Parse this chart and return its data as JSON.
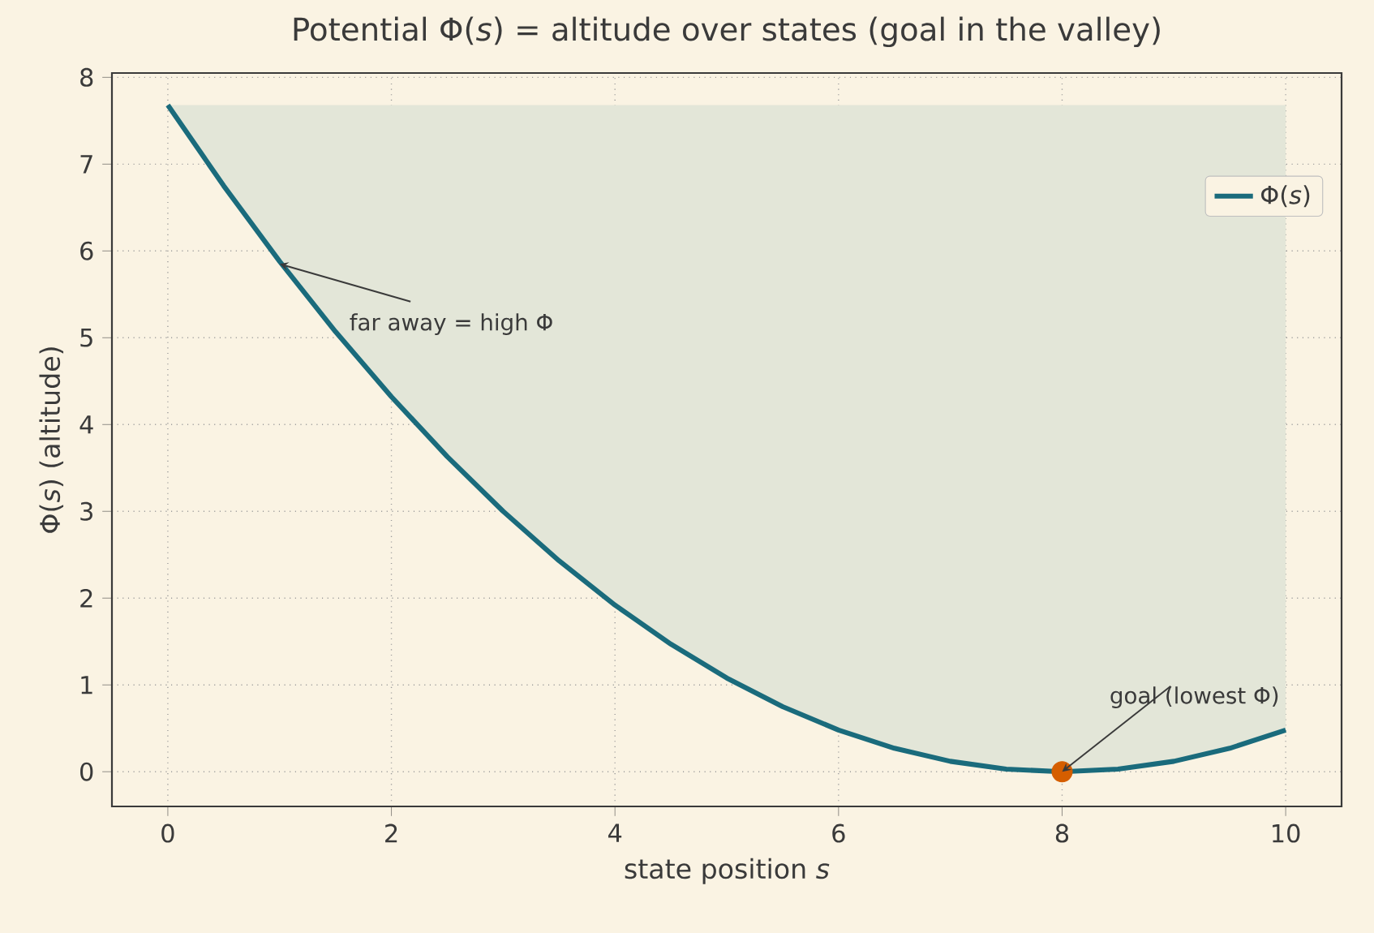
{
  "chart_data": {
    "type": "line",
    "title": "Potential Φ(*s*) = altitude over states (goal in the valley)",
    "xlabel": "state position *s*",
    "ylabel": "Φ(*s*) (altitude)",
    "x": [
      0,
      0.5,
      1,
      1.5,
      2,
      2.5,
      3,
      3.5,
      4,
      4.5,
      5,
      5.5,
      6,
      6.5,
      7,
      7.5,
      8,
      8.5,
      9,
      9.5,
      10
    ],
    "series": [
      {
        "name": "Φ(*s*)",
        "color": "#1a6b7c",
        "values": [
          7.68,
          6.75,
          5.88,
          5.07,
          4.32,
          3.63,
          3.0,
          2.43,
          1.92,
          1.47,
          1.08,
          0.75,
          0.48,
          0.27,
          0.12,
          0.03,
          0.0,
          0.03,
          0.12,
          0.27,
          0.48
        ],
        "lower": [
          7.68,
          6.75,
          5.88,
          5.07,
          4.32,
          3.63,
          3.0,
          2.43,
          1.92,
          1.47,
          1.08,
          0.75,
          0.48,
          0.27,
          0.12,
          0.03,
          0.0,
          0.03,
          0.12,
          0.27,
          0.48
        ],
        "upper": [
          7.68,
          7.68,
          7.68,
          7.68,
          7.68,
          7.68,
          7.68,
          7.68,
          7.68,
          7.68,
          7.68,
          7.68,
          7.68,
          7.68,
          7.68,
          7.68,
          7.68,
          7.68,
          7.68,
          7.68,
          7.68
        ]
      },
      {
        "type": "scatter",
        "color": "#d55e00",
        "x": [
          8
        ],
        "values": [
          0
        ],
        "marker": "circle"
      }
    ],
    "annotations": [
      {
        "text": "far away = high Φ",
        "x": 1,
        "y": 5.85
      },
      {
        "text": "goal (lowest Φ)",
        "x": 8,
        "y": 0
      }
    ],
    "xlim": [
      -0.5,
      10.5
    ],
    "ylim": [
      -0.4,
      8.05
    ],
    "xticks": [
      0,
      2,
      4,
      6,
      8,
      10
    ],
    "yticks": [
      0,
      1,
      2,
      3,
      4,
      5,
      6,
      7,
      8
    ],
    "grid": true,
    "legend": "top right",
    "marker": "none",
    "line_style": "solid"
  }
}
